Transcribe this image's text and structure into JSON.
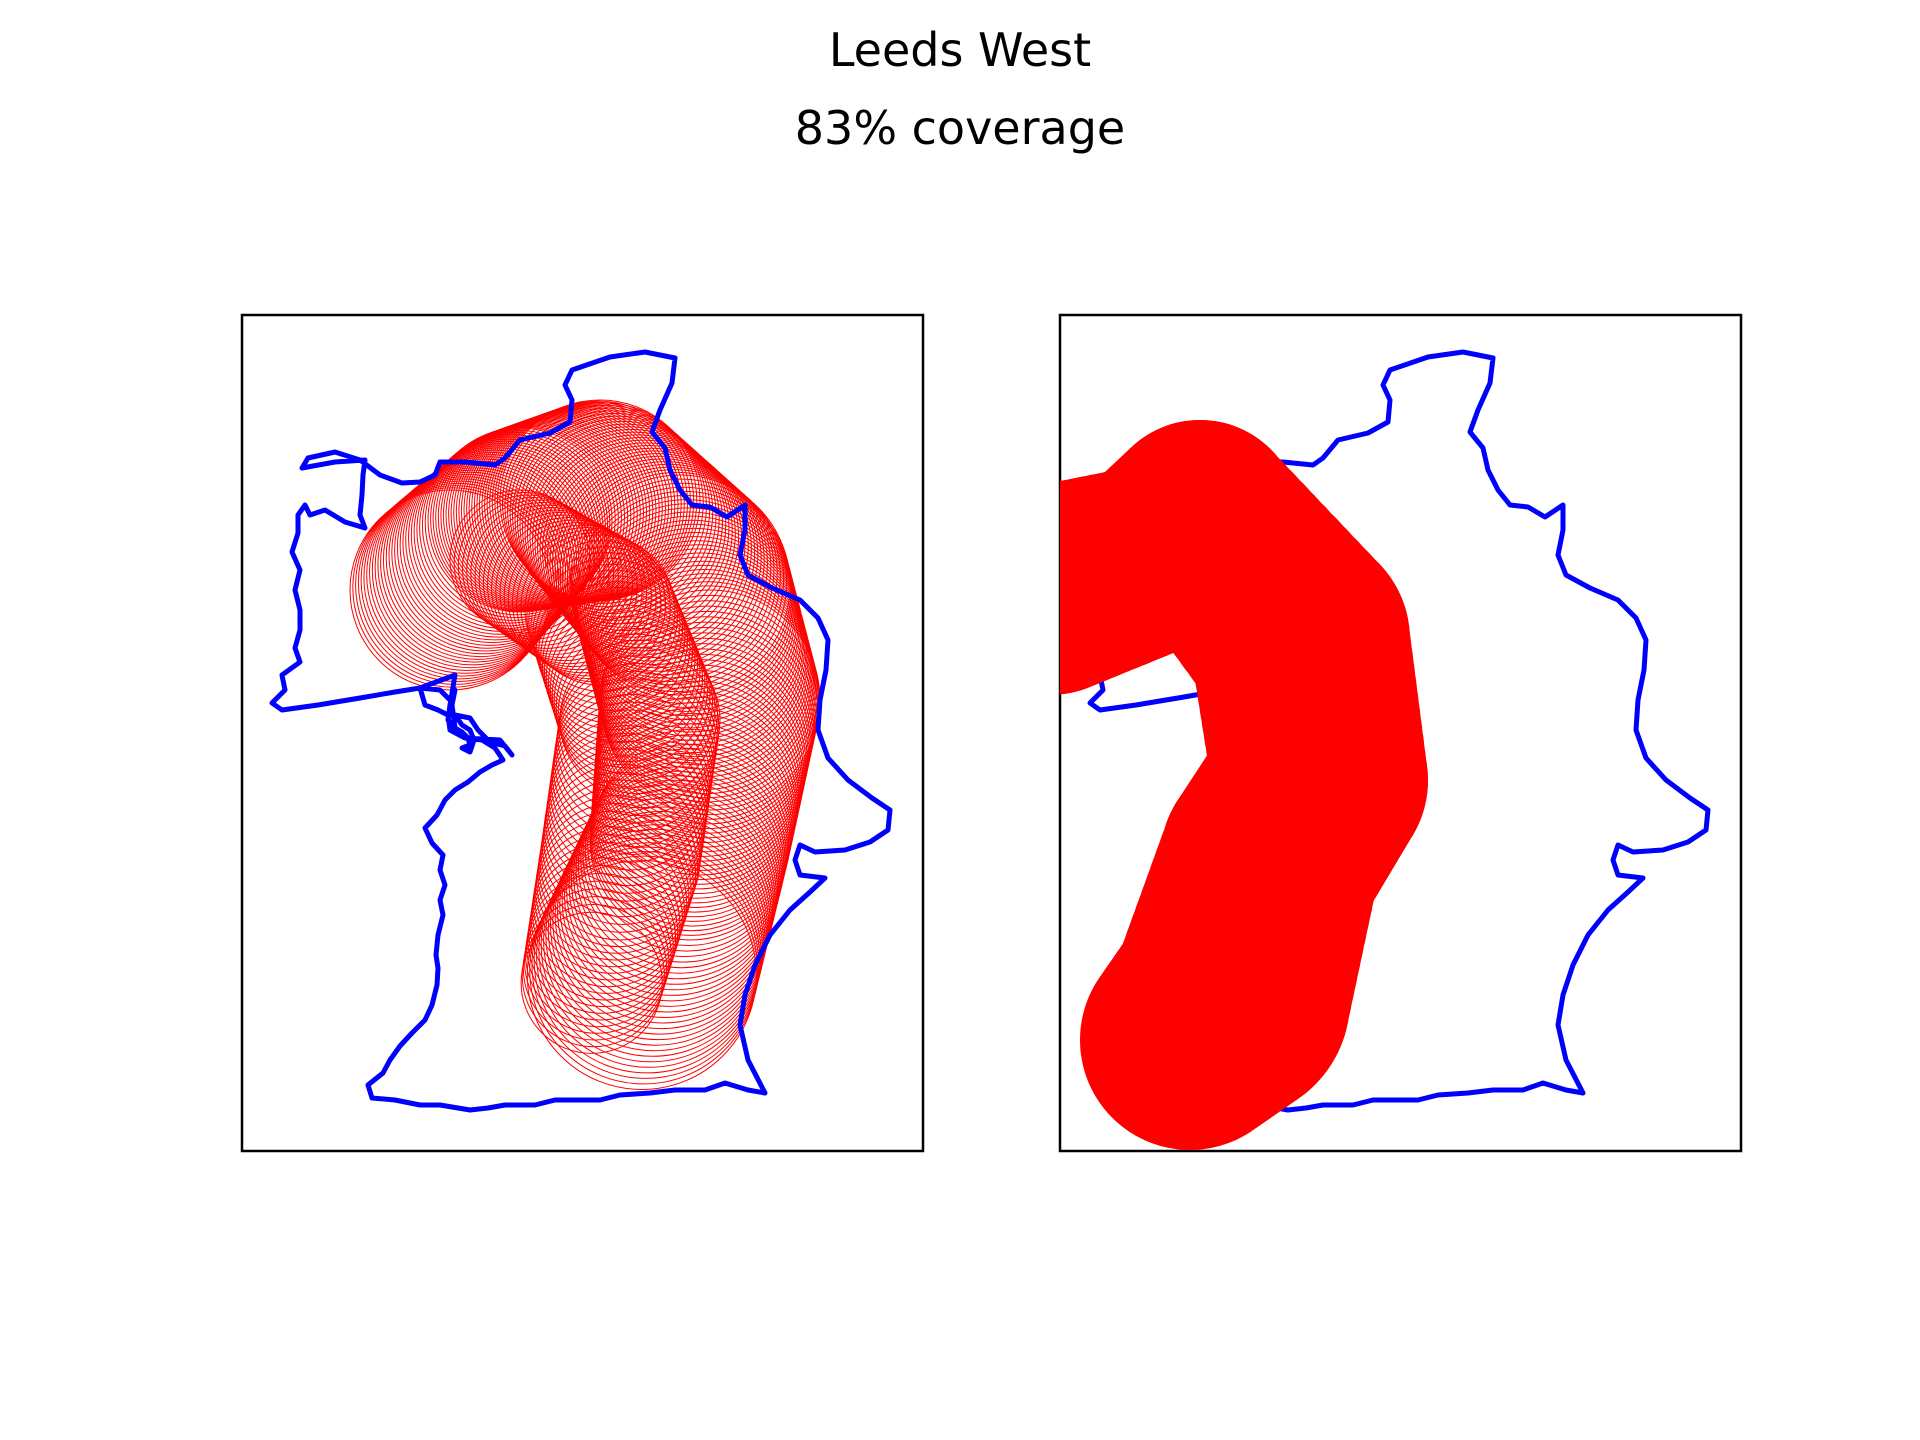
{
  "figure": {
    "title": "Leeds West",
    "subtitle": "83% coverage"
  },
  "colors": {
    "boundary": "#0000ff",
    "coverage": "#ff0000",
    "frame": "#000000",
    "background": "#ffffff"
  },
  "panels": [
    {
      "name": "left",
      "style": "outlined-circles"
    },
    {
      "name": "right",
      "style": "filled-union"
    }
  ]
}
